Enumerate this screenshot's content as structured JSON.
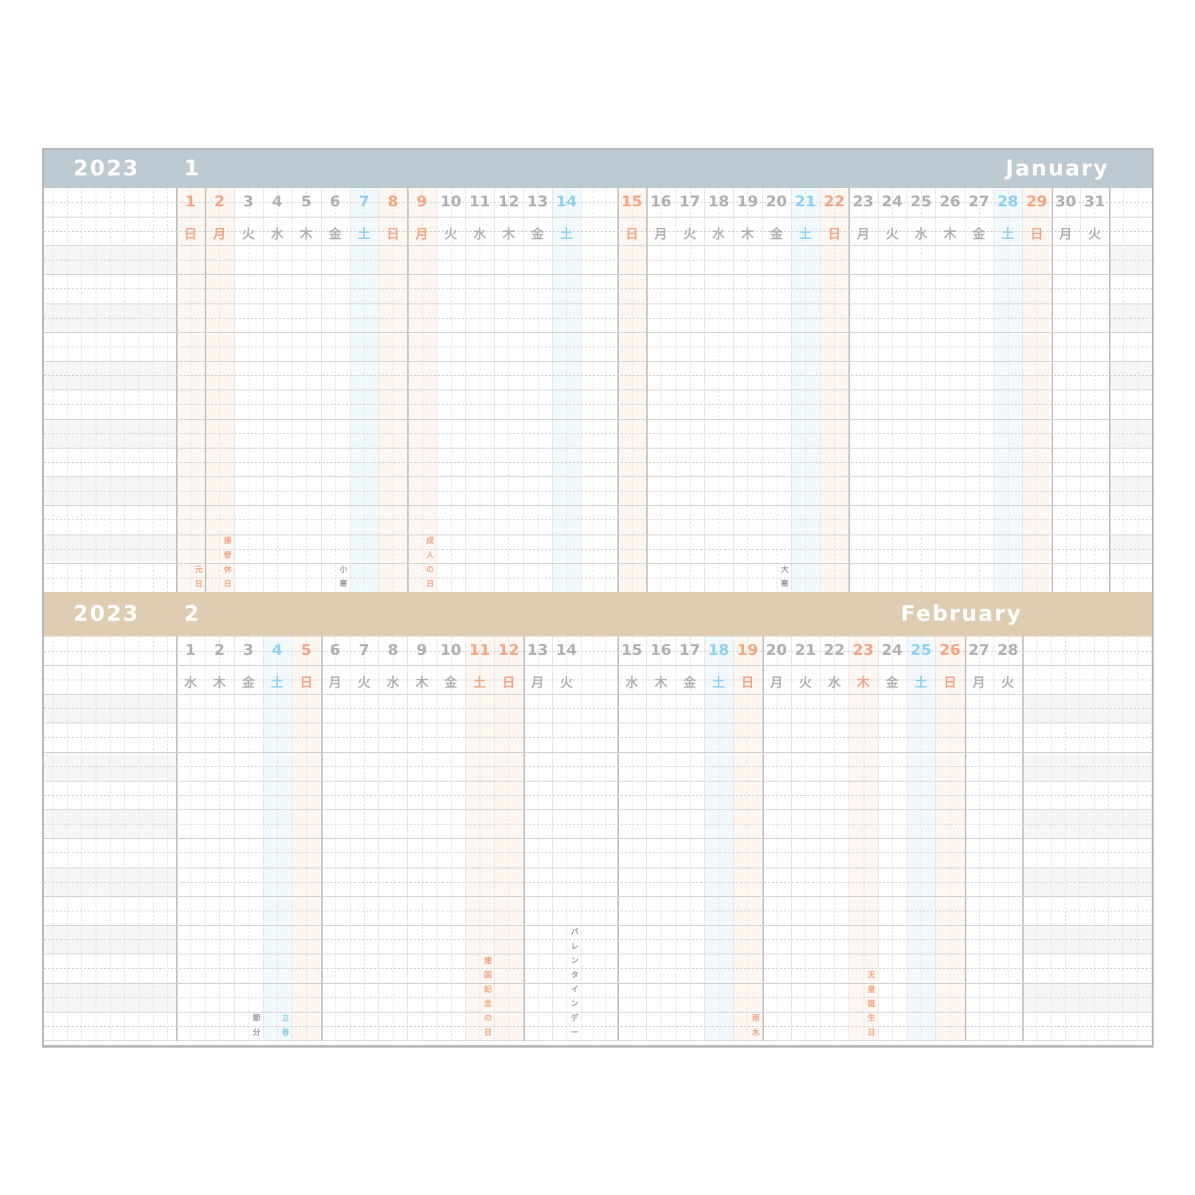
{
  "colors": {
    "holiday": "#f4a582",
    "saturday": "#8fd0ef",
    "weekday": "#b0b0b0",
    "holiday_bg": "#fdf6f1",
    "saturday_bg": "#f2f9fd",
    "january_band": "#bccbd1",
    "february_band": "#dfcdb3"
  },
  "months": [
    {
      "year": "2023",
      "month": "1",
      "name": "January",
      "days": [
        {
          "d": "1",
          "w": "日",
          "t": "h",
          "note": "元日"
        },
        {
          "d": "2",
          "w": "月",
          "t": "h",
          "note": "振替休日"
        },
        {
          "d": "3",
          "w": "火",
          "t": "n"
        },
        {
          "d": "4",
          "w": "水",
          "t": "n"
        },
        {
          "d": "5",
          "w": "木",
          "t": "n"
        },
        {
          "d": "6",
          "w": "金",
          "t": "n",
          "note": "小寒"
        },
        {
          "d": "7",
          "w": "土",
          "t": "s"
        },
        {
          "d": "8",
          "w": "日",
          "t": "h"
        },
        {
          "d": "9",
          "w": "月",
          "t": "h",
          "note": "成人の日"
        },
        {
          "d": "10",
          "w": "火",
          "t": "n"
        },
        {
          "d": "11",
          "w": "水",
          "t": "n"
        },
        {
          "d": "12",
          "w": "木",
          "t": "n"
        },
        {
          "d": "13",
          "w": "金",
          "t": "n"
        },
        {
          "d": "14",
          "w": "土",
          "t": "s"
        },
        {
          "d": "15",
          "w": "日",
          "t": "h"
        },
        {
          "d": "16",
          "w": "月",
          "t": "n"
        },
        {
          "d": "17",
          "w": "火",
          "t": "n"
        },
        {
          "d": "18",
          "w": "水",
          "t": "n"
        },
        {
          "d": "19",
          "w": "木",
          "t": "n"
        },
        {
          "d": "20",
          "w": "金",
          "t": "n",
          "note": "大寒"
        },
        {
          "d": "21",
          "w": "土",
          "t": "s"
        },
        {
          "d": "22",
          "w": "日",
          "t": "h"
        },
        {
          "d": "23",
          "w": "月",
          "t": "n"
        },
        {
          "d": "24",
          "w": "火",
          "t": "n"
        },
        {
          "d": "25",
          "w": "水",
          "t": "n"
        },
        {
          "d": "26",
          "w": "木",
          "t": "n"
        },
        {
          "d": "27",
          "w": "金",
          "t": "n"
        },
        {
          "d": "28",
          "w": "土",
          "t": "s"
        },
        {
          "d": "29",
          "w": "日",
          "t": "h"
        },
        {
          "d": "30",
          "w": "月",
          "t": "n"
        },
        {
          "d": "31",
          "w": "火",
          "t": "n"
        }
      ]
    },
    {
      "year": "2023",
      "month": "2",
      "name": "February",
      "days": [
        {
          "d": "1",
          "w": "水",
          "t": "n"
        },
        {
          "d": "2",
          "w": "木",
          "t": "n"
        },
        {
          "d": "3",
          "w": "金",
          "t": "n",
          "note": "節分"
        },
        {
          "d": "4",
          "w": "土",
          "t": "s",
          "note": "立春"
        },
        {
          "d": "5",
          "w": "日",
          "t": "h"
        },
        {
          "d": "6",
          "w": "月",
          "t": "n"
        },
        {
          "d": "7",
          "w": "火",
          "t": "n"
        },
        {
          "d": "8",
          "w": "水",
          "t": "n"
        },
        {
          "d": "9",
          "w": "木",
          "t": "n"
        },
        {
          "d": "10",
          "w": "金",
          "t": "n"
        },
        {
          "d": "11",
          "w": "土",
          "t": "h",
          "note": "建国記念の日"
        },
        {
          "d": "12",
          "w": "日",
          "t": "h"
        },
        {
          "d": "13",
          "w": "月",
          "t": "n"
        },
        {
          "d": "14",
          "w": "火",
          "t": "n",
          "note": "バレンタインデー"
        },
        {
          "d": "15",
          "w": "水",
          "t": "n"
        },
        {
          "d": "16",
          "w": "木",
          "t": "n"
        },
        {
          "d": "17",
          "w": "金",
          "t": "n"
        },
        {
          "d": "18",
          "w": "土",
          "t": "s"
        },
        {
          "d": "19",
          "w": "日",
          "t": "h",
          "note": "雨水"
        },
        {
          "d": "20",
          "w": "月",
          "t": "n"
        },
        {
          "d": "21",
          "w": "火",
          "t": "n"
        },
        {
          "d": "22",
          "w": "水",
          "t": "n"
        },
        {
          "d": "23",
          "w": "木",
          "t": "h",
          "note": "天皇誕生日"
        },
        {
          "d": "24",
          "w": "金",
          "t": "n"
        },
        {
          "d": "25",
          "w": "土",
          "t": "s"
        },
        {
          "d": "26",
          "w": "日",
          "t": "h"
        },
        {
          "d": "27",
          "w": "月",
          "t": "n"
        },
        {
          "d": "28",
          "w": "火",
          "t": "n"
        }
      ]
    }
  ]
}
